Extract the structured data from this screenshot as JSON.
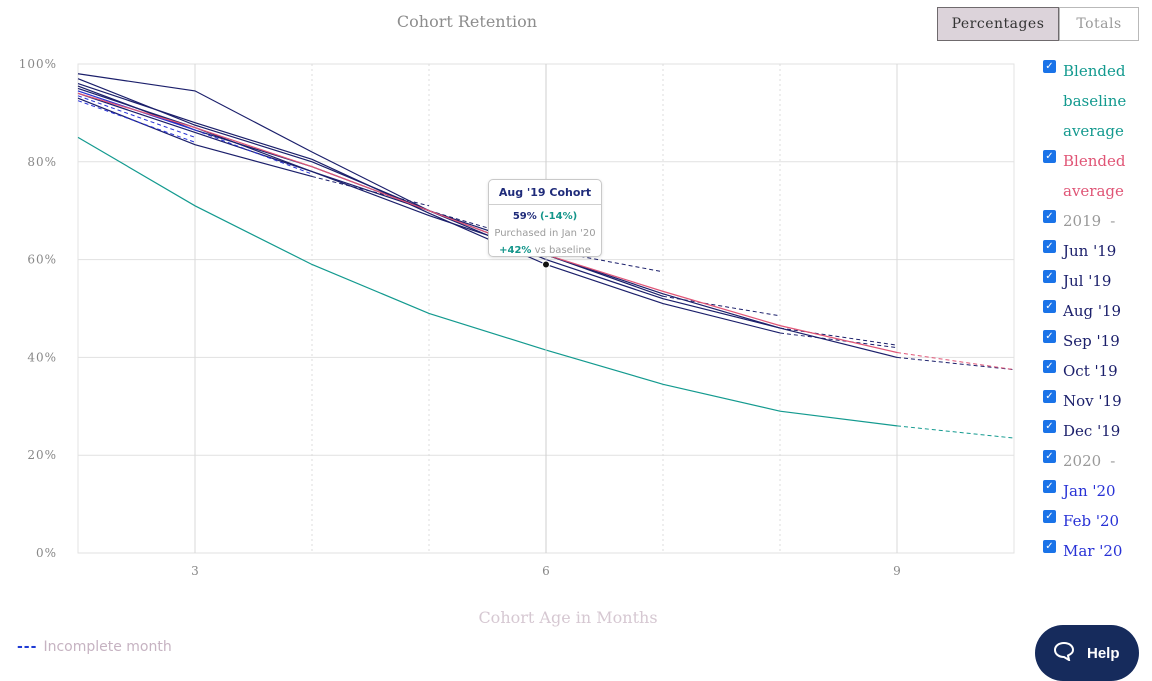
{
  "header": {
    "title": "Cohort Retention",
    "toggle": {
      "percentages": "Percentages",
      "totals": "Totals",
      "active": "percentages"
    }
  },
  "colors": {
    "baseline": "#139a8f",
    "blended": "#e05576",
    "cohorts_2019": "#1b1f6b",
    "cohorts_2020": "#2832d6",
    "grid": "#dedede",
    "checkbox": "#1a73e8"
  },
  "chart_data": {
    "type": "line",
    "xlabel": "Cohort Age in Months",
    "xlim": [
      2,
      10
    ],
    "xticks": [
      3,
      6,
      9
    ],
    "ylim": [
      0,
      100
    ],
    "yticks": [
      0,
      20,
      40,
      60,
      80,
      100
    ],
    "y_tick_labels": [
      "0%",
      "20%",
      "40%",
      "60%",
      "80%",
      "100%"
    ],
    "grid": true,
    "legend_position": "right",
    "incomplete_style": "dashed",
    "series": [
      {
        "name": "Blended baseline average",
        "color": "#139a8f",
        "points": [
          [
            2,
            85
          ],
          [
            3,
            71
          ],
          [
            4,
            59
          ],
          [
            5,
            49
          ],
          [
            6,
            41.5
          ],
          [
            7,
            34.5
          ],
          [
            8,
            29
          ],
          [
            9,
            26
          ]
        ],
        "incomplete": [
          [
            9,
            26
          ],
          [
            10,
            23.5
          ]
        ]
      },
      {
        "name": "Blended average",
        "color": "#e05576",
        "points": [
          [
            2,
            94
          ],
          [
            3,
            87
          ],
          [
            4,
            79
          ],
          [
            5,
            70
          ],
          [
            6,
            61
          ],
          [
            7,
            53.5
          ],
          [
            8,
            46.5
          ],
          [
            9,
            41
          ]
        ],
        "incomplete": [
          [
            9,
            41
          ],
          [
            10,
            37.5
          ]
        ]
      },
      {
        "name": "Jun '19",
        "color": "#1b1f6b",
        "points": [
          [
            2,
            98
          ],
          [
            3,
            94.5
          ],
          [
            4,
            82
          ],
          [
            5,
            70
          ],
          [
            6,
            60
          ],
          [
            7,
            52
          ],
          [
            8,
            46
          ],
          [
            9,
            40
          ]
        ],
        "incomplete": [
          [
            9,
            40
          ],
          [
            10,
            37.5
          ]
        ]
      },
      {
        "name": "Jul '19",
        "color": "#1b1f6b",
        "points": [
          [
            2,
            97
          ],
          [
            3,
            87.5
          ],
          [
            4,
            80
          ],
          [
            5,
            70
          ],
          [
            6,
            61
          ],
          [
            7,
            53
          ],
          [
            8,
            46
          ]
        ],
        "incomplete": [
          [
            8,
            46
          ],
          [
            9,
            42.5
          ]
        ]
      },
      {
        "name": "Aug '19",
        "color": "#1b1f6b",
        "points": [
          [
            2,
            96
          ],
          [
            3,
            88
          ],
          [
            4,
            80.5
          ],
          [
            5,
            69.5
          ],
          [
            6,
            59
          ],
          [
            7,
            51
          ],
          [
            8,
            45
          ]
        ],
        "incomplete": [
          [
            8,
            45
          ],
          [
            9,
            42
          ]
        ]
      },
      {
        "name": "Sep '19",
        "color": "#1b1f6b",
        "points": [
          [
            2,
            95
          ],
          [
            3,
            87
          ],
          [
            4,
            78
          ],
          [
            5,
            69
          ],
          [
            6,
            61
          ],
          [
            7,
            52.5
          ]
        ],
        "incomplete": [
          [
            7,
            52.5
          ],
          [
            8,
            48.5
          ]
        ]
      },
      {
        "name": "Oct '19",
        "color": "#1b1f6b",
        "points": [
          [
            2,
            95.5
          ],
          [
            3,
            86.5
          ],
          [
            4,
            79
          ],
          [
            5,
            70
          ],
          [
            6,
            62
          ]
        ],
        "incomplete": [
          [
            6,
            62
          ],
          [
            7,
            57.5
          ]
        ]
      },
      {
        "name": "Nov '19",
        "color": "#1b1f6b",
        "points": [
          [
            2,
            94
          ],
          [
            3,
            86
          ],
          [
            4,
            78
          ],
          [
            5,
            70
          ]
        ],
        "incomplete": [
          [
            5,
            70
          ],
          [
            6,
            63
          ]
        ]
      },
      {
        "name": "Dec '19",
        "color": "#1b1f6b",
        "points": [
          [
            2,
            93
          ],
          [
            3,
            83.5
          ],
          [
            4,
            77
          ]
        ],
        "incomplete": [
          [
            4,
            77
          ],
          [
            5,
            71
          ]
        ]
      },
      {
        "name": "Jan '20",
        "color": "#2832d6",
        "points": [
          [
            2,
            94.5
          ],
          [
            3,
            86.5
          ]
        ],
        "incomplete": [
          [
            3,
            86.5
          ],
          [
            4,
            77.5
          ]
        ]
      },
      {
        "name": "Feb '20",
        "color": "#2832d6",
        "points": [
          [
            2,
            93.5
          ]
        ],
        "incomplete": [
          [
            2,
            93.5
          ],
          [
            3,
            85
          ]
        ]
      },
      {
        "name": "Mar '20",
        "color": "#2832d6",
        "points": [],
        "incomplete": [
          [
            2,
            92.5
          ],
          [
            3,
            84
          ]
        ]
      }
    ],
    "highlight_point": {
      "series": "Aug '19",
      "x": 6,
      "y": 59
    }
  },
  "tooltip": {
    "title": "Aug '19 Cohort",
    "value": "59%",
    "delta": "(-14%)",
    "purchase": "Purchased in Jan '20",
    "vs_baseline_value": "+42%",
    "vs_baseline_text": "vs baseline"
  },
  "legend": [
    {
      "label": "Blended baseline average",
      "color": "#139a8f",
      "checked": true
    },
    {
      "label": "Blended average",
      "color": "#e05576",
      "checked": true
    },
    {
      "label": "2019",
      "suffix": "-",
      "color": "#9a9a9a",
      "checked": true
    },
    {
      "label": "Jun '19",
      "color": "#1b1f6b",
      "checked": true
    },
    {
      "label": "Jul '19",
      "color": "#1b1f6b",
      "checked": true
    },
    {
      "label": "Aug '19",
      "color": "#1b1f6b",
      "checked": true
    },
    {
      "label": "Sep '19",
      "color": "#1b1f6b",
      "checked": true
    },
    {
      "label": "Oct '19",
      "color": "#1b1f6b",
      "checked": true
    },
    {
      "label": "Nov '19",
      "color": "#1b1f6b",
      "checked": true
    },
    {
      "label": "Dec '19",
      "color": "#1b1f6b",
      "checked": true
    },
    {
      "label": "2020",
      "suffix": "-",
      "color": "#9a9a9a",
      "checked": true
    },
    {
      "label": "Jan '20",
      "color": "#2832d6",
      "checked": true
    },
    {
      "label": "Feb '20",
      "color": "#2832d6",
      "checked": true
    },
    {
      "label": "Mar '20",
      "color": "#2832d6",
      "checked": true
    }
  ],
  "footer": {
    "incomplete_marker": "---",
    "incomplete_label": "Incomplete month",
    "help_label": "Help",
    "help_icon": "chat-bubble-icon"
  }
}
